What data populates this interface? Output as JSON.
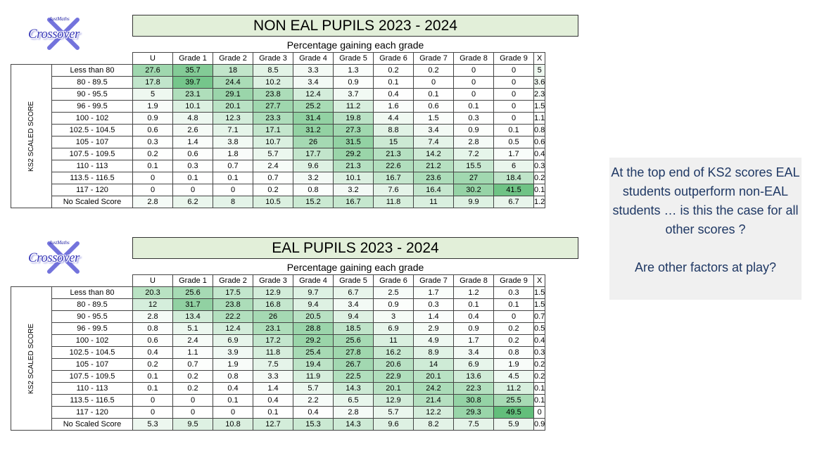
{
  "logo": {
    "tagline": "JustMaths",
    "word": "Crossover"
  },
  "columns": [
    "U",
    "Grade 1",
    "Grade 2",
    "Grade 3",
    "Grade 4",
    "Grade 5",
    "Grade 6",
    "Grade 7",
    "Grade 8",
    "Grade 9",
    "X"
  ],
  "tables": [
    {
      "title": "NON EAL PUPILS 2023 - 2024",
      "subtitle": "Percentage gaining each grade",
      "side_label": "KS2 SCALED SCORE",
      "rows": [
        {
          "label": "Less than 80",
          "values": [
            27.6,
            35.7,
            18,
            8.5,
            3.3,
            1.3,
            0.2,
            0.2,
            0,
            0,
            5
          ]
        },
        {
          "label": "80 - 89.5",
          "values": [
            17.8,
            39.7,
            24.4,
            10.2,
            3.4,
            0.9,
            0.1,
            0,
            0,
            0,
            3.6
          ]
        },
        {
          "label": "90 - 95.5",
          "values": [
            5,
            23.1,
            29.1,
            23.8,
            12.4,
            3.7,
            0.4,
            0.1,
            0,
            0,
            2.3
          ]
        },
        {
          "label": "96 - 99.5",
          "values": [
            1.9,
            10.1,
            20.1,
            27.7,
            25.2,
            11.2,
            1.6,
            0.6,
            0.1,
            0,
            1.5
          ]
        },
        {
          "label": "100 - 102",
          "values": [
            0.9,
            4.8,
            12.3,
            23.3,
            31.4,
            19.8,
            4.4,
            1.5,
            0.3,
            0,
            1.1
          ]
        },
        {
          "label": "102.5 - 104.5",
          "values": [
            0.6,
            2.6,
            7.1,
            17.1,
            31.2,
            27.3,
            8.8,
            3.4,
            0.9,
            0.1,
            0.8
          ]
        },
        {
          "label": "105 - 107",
          "values": [
            0.3,
            1.4,
            3.8,
            10.7,
            26,
            31.5,
            15,
            7.4,
            2.8,
            0.5,
            0.6
          ]
        },
        {
          "label": "107.5 - 109.5",
          "values": [
            0.2,
            0.6,
            1.8,
            5.7,
            17.7,
            29.2,
            21.3,
            14.2,
            7.2,
            1.7,
            0.4
          ]
        },
        {
          "label": "110 - 113",
          "values": [
            0.1,
            0.3,
            0.7,
            2.4,
            9.6,
            21.3,
            22.6,
            21.2,
            15.5,
            6,
            0.3
          ]
        },
        {
          "label": "113.5 - 116.5",
          "values": [
            0,
            0.1,
            0.1,
            0.7,
            3.2,
            10.1,
            16.7,
            23.6,
            27,
            18.4,
            0.2
          ]
        },
        {
          "label": "117 - 120",
          "values": [
            0,
            0,
            0,
            0.2,
            0.8,
            3.2,
            7.6,
            16.4,
            30.2,
            41.5,
            0.1
          ]
        },
        {
          "label": "No Scaled Score",
          "values": [
            2.8,
            6.2,
            8,
            10.5,
            15.2,
            16.7,
            11.8,
            11,
            9.9,
            6.7,
            1.2
          ]
        }
      ]
    },
    {
      "title": "EAL PUPILS 2023 - 2024",
      "subtitle": "Percentage gaining each grade",
      "side_label": "KS2 SCALED SCORE",
      "rows": [
        {
          "label": "Less than 80",
          "values": [
            20.3,
            25.6,
            17.5,
            12.9,
            9.7,
            6.7,
            2.5,
            1.7,
            1.2,
            0.3,
            1.5
          ]
        },
        {
          "label": "80 - 89.5",
          "values": [
            12,
            31.7,
            23.8,
            16.8,
            9.4,
            3.4,
            0.9,
            0.3,
            0.1,
            0.1,
            1.5
          ]
        },
        {
          "label": "90 - 95.5",
          "values": [
            2.8,
            13.4,
            22.2,
            26,
            20.5,
            9.4,
            3,
            1.4,
            0.4,
            0,
            0.7
          ]
        },
        {
          "label": "96 - 99.5",
          "values": [
            0.8,
            5.1,
            12.4,
            23.1,
            28.8,
            18.5,
            6.9,
            2.9,
            0.9,
            0.2,
            0.5
          ]
        },
        {
          "label": "100 - 102",
          "values": [
            0.6,
            2.4,
            6.9,
            17.2,
            29.2,
            25.6,
            11,
            4.9,
            1.7,
            0.2,
            0.4
          ]
        },
        {
          "label": "102.5 - 104.5",
          "values": [
            0.4,
            1.1,
            3.9,
            11.8,
            25.4,
            27.8,
            16.2,
            8.9,
            3.4,
            0.8,
            0.3
          ]
        },
        {
          "label": "105 - 107",
          "values": [
            0.2,
            0.7,
            1.9,
            7.5,
            19.4,
            26.7,
            20.6,
            14,
            6.9,
            1.9,
            0.2
          ]
        },
        {
          "label": "107.5 - 109.5",
          "values": [
            0.1,
            0.2,
            0.8,
            3.3,
            11.9,
            22.5,
            22.9,
            20.1,
            13.6,
            4.5,
            0.2
          ]
        },
        {
          "label": "110 - 113",
          "values": [
            0.1,
            0.2,
            0.4,
            1.4,
            5.7,
            14.3,
            20.1,
            24.2,
            22.3,
            11.2,
            0.1
          ]
        },
        {
          "label": "113.5 - 116.5",
          "values": [
            0,
            0,
            0.1,
            0.4,
            2.2,
            6.5,
            12.9,
            21.4,
            30.8,
            25.5,
            0.1
          ]
        },
        {
          "label": "117 - 120",
          "values": [
            0,
            0,
            0,
            0.1,
            0.4,
            2.8,
            5.7,
            12.2,
            29.3,
            49.5,
            0
          ]
        },
        {
          "label": "No Scaled Score",
          "values": [
            5.3,
            9.5,
            10.8,
            12.7,
            15.3,
            14.3,
            9.6,
            8.2,
            7.5,
            5.9,
            0.9
          ]
        }
      ]
    }
  ],
  "note": {
    "line1": "At the top end of KS2 scores EAL students outperform non-EAL students … is this the case for all other scores ?",
    "line2": "Are other factors at play?"
  },
  "colors": {
    "title_bg": "#e2efd9",
    "note_text": "#1f3864",
    "note_bg": "#f0f0f0",
    "heat_max": "#63be7b",
    "heat_min": "#ffffff"
  }
}
